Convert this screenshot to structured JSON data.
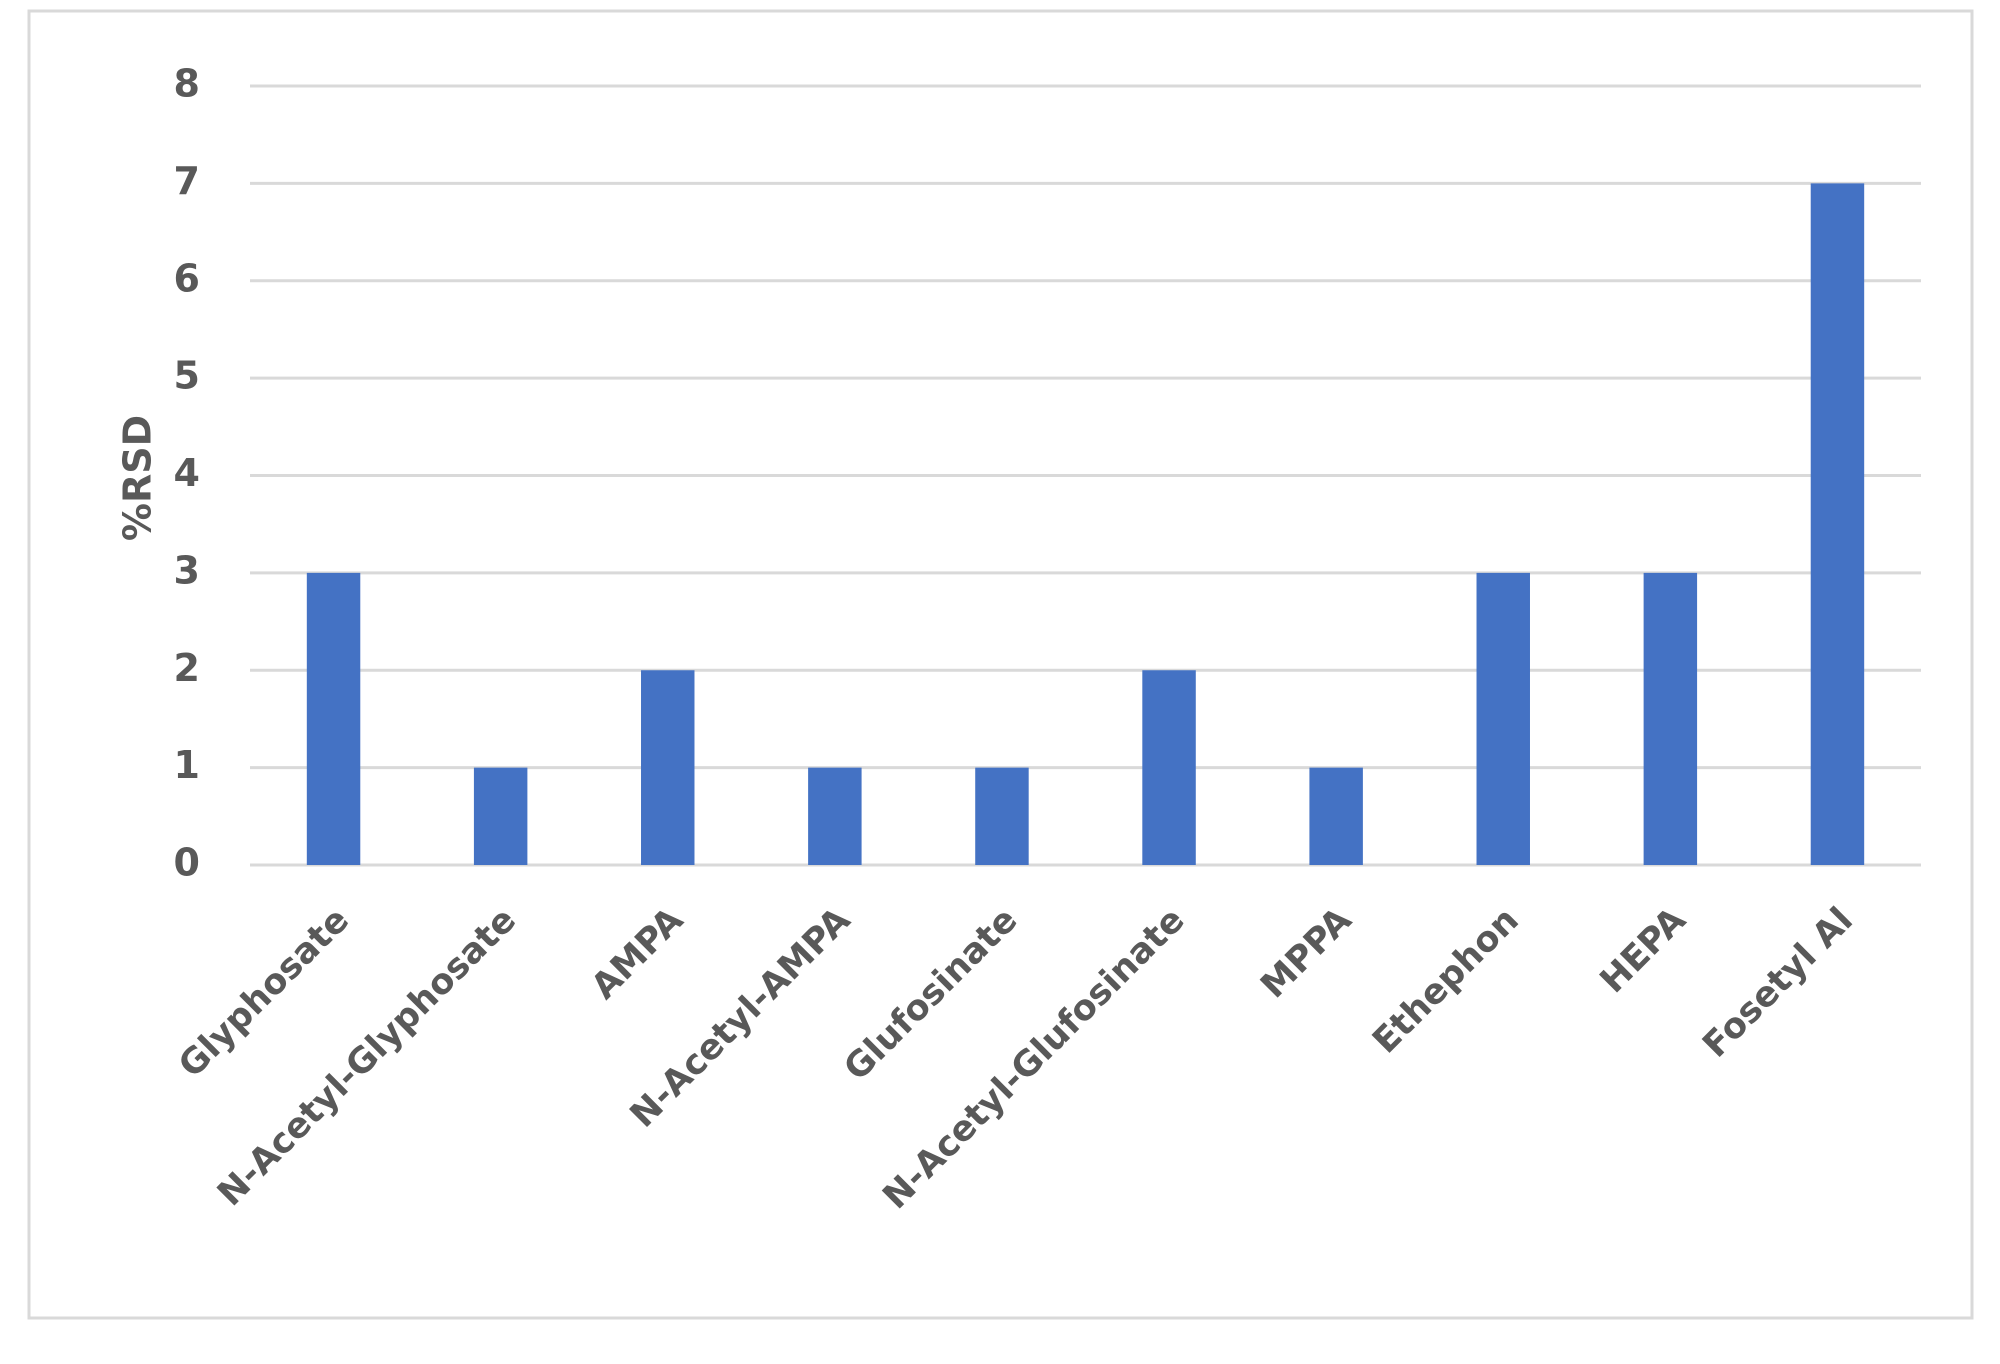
{
  "chart_data": {
    "type": "bar",
    "title": "",
    "xlabel": "",
    "ylabel": "%RSD",
    "categories": [
      "Glyphosate",
      "N-Acetyl-Glyphosate",
      "AMPA",
      "N-Acetyl-AMPA",
      "Glufosinate",
      "N-Acetyl-Glufosinate",
      "MPPA",
      "Ethephon",
      "HEPA",
      "Fosetyl Al"
    ],
    "values": [
      3,
      1,
      2,
      1,
      1,
      2,
      1,
      3,
      3,
      7
    ],
    "ylim": [
      0,
      8
    ],
    "yticks": [
      0,
      1,
      2,
      3,
      4,
      5,
      6,
      7,
      8
    ],
    "grid": true,
    "legend": "none",
    "colors": {
      "bar": "#4472C4",
      "grid": "#D9D9D9",
      "frame": "#D9D9D9",
      "text": "#595959"
    }
  }
}
